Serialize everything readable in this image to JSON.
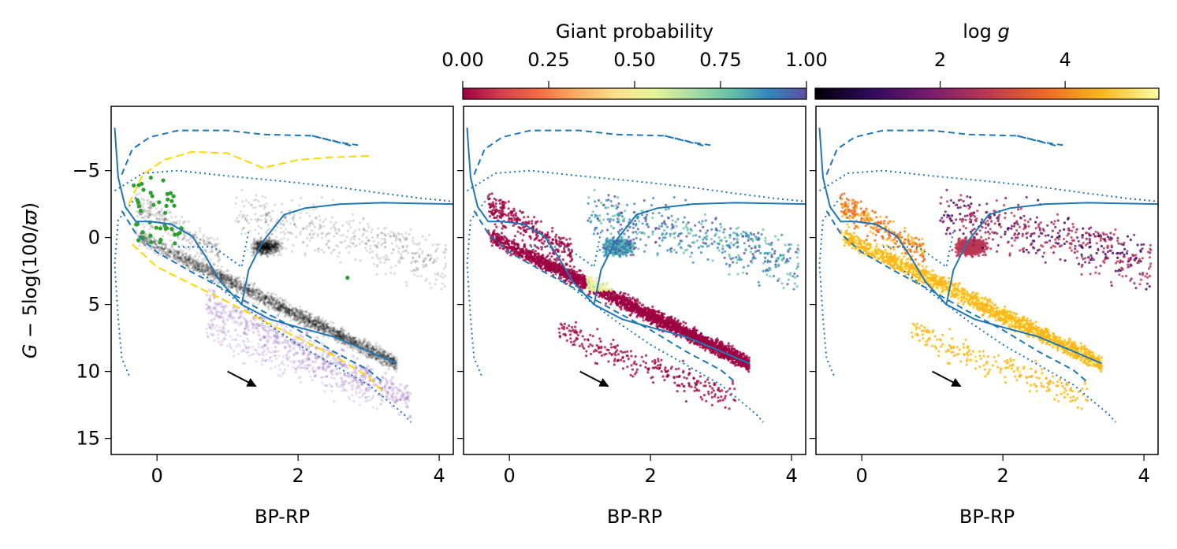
{
  "chart_data": {
    "type": "scatter",
    "ylabel": "G − 5log(100/ϖ)",
    "y_inverted": true,
    "ylim": [
      16.2,
      -9.8
    ],
    "xlim": [
      -0.65,
      4.2
    ],
    "x_ticks": [
      0,
      2,
      4
    ],
    "y_ticks": [
      -5,
      0,
      5,
      10,
      15
    ],
    "panels": [
      {
        "name": "left",
        "xlabel": "BP-RP"
      },
      {
        "name": "middle",
        "xlabel": "BP-RP"
      },
      {
        "name": "right",
        "xlabel": "BP-RP"
      }
    ],
    "colorbars": [
      {
        "label": "Giant probability",
        "range": [
          0,
          1
        ],
        "ticks": [
          "0.00",
          "0.25",
          "0.50",
          "0.75",
          "1.00"
        ],
        "colors": [
          "#9e0142",
          "#d53e4f",
          "#f46d43",
          "#fdae61",
          "#fee08b",
          "#e6f598",
          "#abdda4",
          "#66c2a5",
          "#3288bd",
          "#5e4fa2"
        ]
      },
      {
        "label": "log g",
        "range": [
          0,
          5.5
        ],
        "ticks": [
          "2",
          "4"
        ],
        "tick_values": [
          2,
          4
        ],
        "colors": [
          "#000004",
          "#320a5e",
          "#781c6d",
          "#bc3754",
          "#ed6925",
          "#fbb61a",
          "#fcffa4"
        ]
      }
    ],
    "tracks": {
      "solid": [
        [
          -0.6,
          -8.2
        ],
        [
          -0.55,
          -4.5
        ],
        [
          -0.45,
          -2.3
        ],
        [
          -0.3,
          -1.2
        ],
        [
          -0.1,
          -1.2
        ],
        [
          0.2,
          -1
        ],
        [
          0.5,
          -0.1
        ],
        [
          0.7,
          1.5
        ],
        [
          0.9,
          3.3
        ],
        [
          1.2,
          5
        ],
        [
          1.6,
          6.1
        ],
        [
          2,
          6.7
        ],
        [
          2.5,
          7.4
        ],
        [
          3,
          8.5
        ],
        [
          3.4,
          9.4
        ]
      ],
      "solid_branch": [
        [
          1.2,
          5
        ],
        [
          1.3,
          2.4
        ],
        [
          1.5,
          0.3
        ],
        [
          1.8,
          -1.7
        ],
        [
          2.1,
          -2.2
        ],
        [
          2.6,
          -2.5
        ],
        [
          3.2,
          -2.6
        ],
        [
          4.2,
          -2.5
        ]
      ],
      "dashed_upper": [
        [
          -0.5,
          -4.7
        ],
        [
          -0.35,
          -6.6
        ],
        [
          -0.1,
          -7.5
        ],
        [
          0.3,
          -8
        ],
        [
          1,
          -8
        ],
        [
          1.5,
          -7.7
        ],
        [
          2.2,
          -7.6
        ],
        [
          2.8,
          -6.8
        ]
      ],
      "dashed_hook": [
        [
          2.2,
          -7.6
        ],
        [
          2.6,
          -7.1
        ],
        [
          2.85,
          -6.9
        ]
      ],
      "dashed_ms": [
        [
          -0.5,
          -2
        ],
        [
          -0.3,
          -0.3
        ],
        [
          0,
          1.1
        ],
        [
          0.5,
          2.6
        ],
        [
          1,
          4
        ],
        [
          1.5,
          5.5
        ],
        [
          2,
          6.9
        ],
        [
          2.5,
          8.5
        ],
        [
          3,
          9.9
        ],
        [
          3.2,
          10.8
        ]
      ],
      "dotted_big": [
        [
          -0.6,
          -3.5
        ],
        [
          -0.2,
          -4.8
        ],
        [
          0.3,
          -5
        ],
        [
          1,
          -4.6
        ],
        [
          1.8,
          -4.2
        ],
        [
          2.5,
          -3.8
        ],
        [
          3.2,
          -3.3
        ],
        [
          3.8,
          -2.9
        ],
        [
          4.2,
          -2.7
        ]
      ],
      "dotted_left": [
        [
          -0.3,
          -3
        ],
        [
          -0.55,
          -1.3
        ],
        [
          -0.6,
          2
        ],
        [
          -0.55,
          6
        ],
        [
          -0.5,
          9
        ],
        [
          -0.38,
          10.5
        ]
      ],
      "dotted_ms": [
        [
          0.6,
          2.5
        ],
        [
          1,
          4.2
        ],
        [
          1.5,
          6.2
        ],
        [
          2,
          8
        ],
        [
          2.5,
          9.5
        ],
        [
          3,
          11
        ],
        [
          3.5,
          13.2
        ],
        [
          3.6,
          13.8
        ]
      ],
      "dotted_loop": [
        [
          0.3,
          0.7
        ],
        [
          0.8,
          0.7
        ],
        [
          1.2,
          2.2
        ],
        [
          1.3,
          -0.5
        ]
      ],
      "yellow_dashed": [
        [
          -0.4,
          -2.5
        ],
        [
          -0.2,
          -4.7
        ],
        [
          0.1,
          -5.8
        ],
        [
          0.5,
          -6.4
        ],
        [
          1,
          -6.3
        ],
        [
          1.5,
          -5.2
        ],
        [
          2,
          -5.8
        ],
        [
          2.5,
          -6
        ],
        [
          3.05,
          -6.1
        ]
      ],
      "yellow_ms": [
        [
          -0.35,
          0.5
        ],
        [
          0,
          2.2
        ],
        [
          0.5,
          3.5
        ],
        [
          1,
          4.8
        ],
        [
          1.5,
          6.2
        ],
        [
          2,
          7.5
        ],
        [
          2.5,
          8.8
        ],
        [
          3,
          10.4
        ],
        [
          3.2,
          11.5
        ]
      ]
    },
    "arrow": {
      "from": [
        1.0,
        10.0
      ],
      "to": [
        1.4,
        11.1
      ]
    }
  }
}
